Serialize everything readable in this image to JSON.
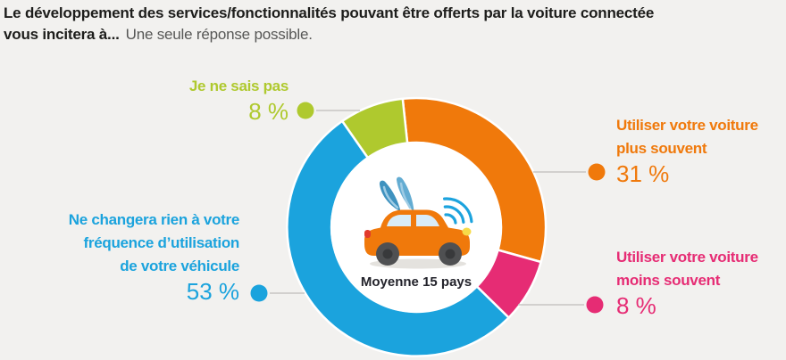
{
  "title": {
    "line1": "Le développement des services/fonctionnalités pouvant être offerts par la voiture connectée",
    "line2_bold": "vous incitera à...",
    "line2_regular": "Une seule réponse possible."
  },
  "colors": {
    "orange": "#F0790B",
    "pink": "#E62C74",
    "blue": "#1BA3DD",
    "green": "#AFC92E",
    "background": "#F2F1EF",
    "title_text": "#1D1D1B",
    "subtitle_text": "#575756",
    "connector_line": "#C7C6C4",
    "center_text": "#23232B",
    "inner_circle": "#FFFFFF"
  },
  "chart_data": {
    "type": "pie",
    "donut": true,
    "title": "Le développement des services/fonctionnalités pouvant être offerts par la voiture connectée vous incitera à...",
    "subtitle": "Une seule réponse possible.",
    "center_label": "Moyenne 15 pays",
    "unit": "%",
    "start_angle_deg": -6,
    "legend_position": "around-chart",
    "segments": [
      {
        "label": "Utiliser votre voiture plus souvent",
        "value": 31,
        "color": "#F0790B"
      },
      {
        "label": "Utiliser votre voiture moins souvent",
        "value": 8,
        "color": "#E62C74"
      },
      {
        "label": "Ne changera rien à votre fréquence d’utilisation de votre véhicule",
        "value": 53,
        "color": "#1BA3DD"
      },
      {
        "label": "Je ne sais pas",
        "value": 8,
        "color": "#AFC92E"
      }
    ]
  },
  "callouts": {
    "dont_know": {
      "line1": "Je ne sais pas",
      "value": "8 %"
    },
    "more_often": {
      "line1": "Utiliser votre voiture",
      "line2": "plus souvent",
      "value": "31 %"
    },
    "no_change": {
      "line1": "Ne changera rien à votre",
      "line2": "fréquence d’utilisation",
      "line3": "de votre véhicule",
      "value": "53 %"
    },
    "less_often": {
      "line1": "Utiliser votre voiture",
      "line2": "moins souvent",
      "value": "8 %"
    }
  },
  "center_caption": "Moyenne 15 pays"
}
